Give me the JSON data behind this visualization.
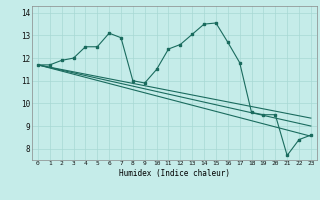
{
  "xlabel": "Humidex (Indice chaleur)",
  "bg_color": "#c5ece9",
  "grid_color": "#a8d8d4",
  "line_color": "#1a6b5e",
  "xlim": [
    -0.5,
    23.5
  ],
  "ylim": [
    7.5,
    14.3
  ],
  "xticks": [
    0,
    1,
    2,
    3,
    4,
    5,
    6,
    7,
    8,
    9,
    10,
    11,
    12,
    13,
    14,
    15,
    16,
    17,
    18,
    19,
    20,
    21,
    22,
    23
  ],
  "yticks": [
    8,
    9,
    10,
    11,
    12,
    13,
    14
  ],
  "series1": [
    11.7,
    11.7,
    11.9,
    12.0,
    12.5,
    12.5,
    13.1,
    12.9,
    11.0,
    10.9,
    11.5,
    12.4,
    12.6,
    13.05,
    13.5,
    13.55,
    12.7,
    11.8,
    9.6,
    9.5,
    9.5,
    7.7,
    8.4,
    8.6
  ],
  "series2_x": [
    0,
    23
  ],
  "series2_y": [
    11.7,
    8.55
  ],
  "series3_x": [
    0,
    23
  ],
  "series3_y": [
    11.7,
    9.0
  ],
  "series4_x": [
    0,
    23
  ],
  "series4_y": [
    11.7,
    9.35
  ]
}
